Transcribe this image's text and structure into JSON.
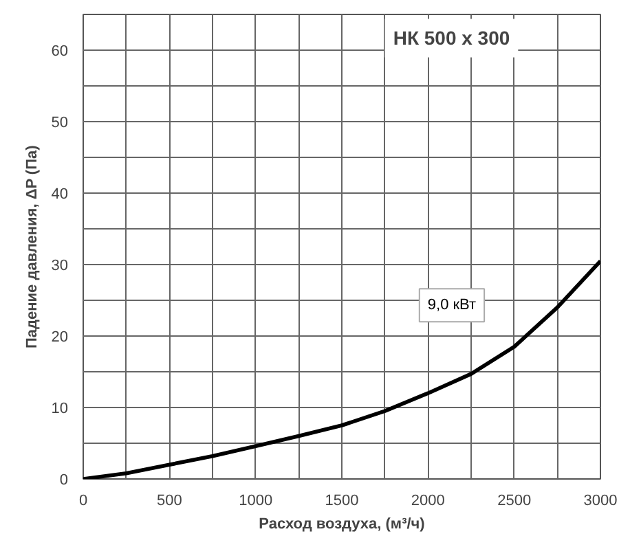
{
  "chart_data": {
    "type": "line",
    "title": "НК 500 x 300",
    "xlabel": "Расход воздуха, (м³/ч)",
    "ylabel": "Падение давления, ΔP (Па)",
    "x": [
      0,
      250,
      500,
      750,
      1000,
      1250,
      1500,
      1750,
      2000,
      2250,
      2500,
      2750,
      3000
    ],
    "series": [
      {
        "name": "9,0 кВт",
        "color": "#000000",
        "values": [
          0,
          0.8,
          2,
          3.2,
          4.6,
          6,
          7.5,
          9.5,
          12,
          14.7,
          18.5,
          24,
          30.5
        ]
      }
    ],
    "xlim": [
      0,
      3000
    ],
    "ylim": [
      0,
      65
    ],
    "xticks": [
      0,
      {
        "value": 250,
        "label": null
      },
      500,
      {
        "value": 750,
        "label": null
      },
      1000,
      {
        "value": 1250,
        "label": null
      },
      1500,
      {
        "value": 1750,
        "label": null
      },
      2000,
      {
        "value": 2250,
        "label": null
      },
      2500,
      {
        "value": 2750,
        "label": null
      },
      3000
    ],
    "yticks": [
      0,
      {
        "value": 5,
        "label": null
      },
      10,
      {
        "value": 15,
        "label": null
      },
      20,
      {
        "value": 25,
        "label": null
      },
      30,
      {
        "value": 35,
        "label": null
      },
      40,
      {
        "value": 45,
        "label": null
      },
      50,
      {
        "value": 55,
        "label": null
      },
      60
    ],
    "grid": true,
    "marker": "none",
    "line_style": "solid"
  }
}
